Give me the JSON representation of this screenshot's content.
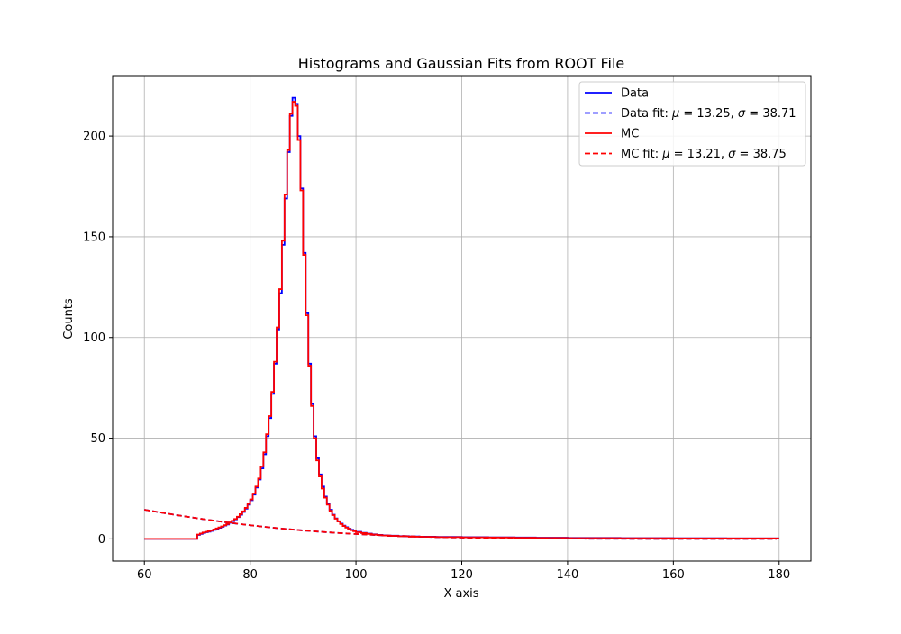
{
  "chart_data": {
    "type": "line",
    "title": "Histograms and Gaussian Fits from ROOT File",
    "xlabel": "X axis",
    "ylabel": "Counts",
    "xlim": [
      54,
      186
    ],
    "ylim": [
      -11,
      230
    ],
    "grid": true,
    "legend_position": "top-right",
    "x_ticks": [
      60,
      80,
      100,
      120,
      140,
      160,
      180
    ],
    "y_ticks": [
      0,
      50,
      100,
      150,
      200
    ],
    "x_tick_labels": [
      "60",
      "80",
      "100",
      "120",
      "140",
      "160",
      "180"
    ],
    "y_tick_labels": [
      "0",
      "50",
      "100",
      "150",
      "200"
    ],
    "bin_width": 0.5,
    "series": [
      {
        "name": "Data",
        "style": "step",
        "color": "#0000ff",
        "x": [
          60,
          60.5,
          61,
          61.5,
          62,
          62.5,
          63,
          63.5,
          64,
          64.5,
          65,
          65.5,
          66,
          66.5,
          67,
          67.5,
          68,
          68.5,
          69,
          69.5,
          70,
          70.5,
          71,
          71.5,
          72,
          72.5,
          73,
          73.5,
          74,
          74.5,
          75,
          75.5,
          76,
          76.5,
          77,
          77.5,
          78,
          78.5,
          79,
          79.5,
          80,
          80.5,
          81,
          81.5,
          82,
          82.5,
          83,
          83.5,
          84,
          84.5,
          85,
          85.5,
          86,
          86.5,
          87,
          87.5,
          88,
          88.5,
          89,
          89.5,
          90,
          90.5,
          91,
          91.5,
          92,
          92.5,
          93,
          93.5,
          94,
          94.5,
          95,
          95.5,
          96,
          96.5,
          97,
          97.5,
          98,
          98.5,
          99,
          99.5,
          100,
          101,
          102,
          103,
          104,
          105,
          106,
          108,
          110,
          112,
          115,
          120,
          125,
          130,
          134,
          140,
          150,
          160,
          170,
          179.5
        ],
        "y": [
          0,
          0,
          0,
          0,
          0,
          0,
          0,
          0,
          0,
          0,
          0,
          0,
          0,
          0,
          0,
          0,
          0,
          0,
          0,
          0,
          2,
          2.5,
          3,
          3.3,
          3.6,
          4,
          4.5,
          5,
          5.5,
          6,
          6.6,
          7.2,
          8,
          8.8,
          9.7,
          10.8,
          12,
          13.4,
          15,
          17,
          19.2,
          22,
          25.5,
          29.5,
          35,
          42,
          51,
          60,
          72,
          87,
          104,
          122,
          146,
          169,
          192,
          210,
          219,
          216,
          200,
          174,
          142,
          112,
          87,
          67,
          51,
          40,
          32,
          26,
          21,
          17.5,
          14.5,
          12,
          10.2,
          8.8,
          7.6,
          6.6,
          5.8,
          5.1,
          4.5,
          4,
          3.5,
          3,
          2.6,
          2.3,
          2,
          1.8,
          1.6,
          1.4,
          1.2,
          1.1,
          1,
          0.9,
          0.8,
          0.7,
          0.6,
          0.5,
          0.4,
          0.35,
          0.3,
          0.3
        ],
        "fit": {
          "name": "Data fit: μ = 13.25, σ = 38.71",
          "label_plain": "Data fit: ",
          "mu_value": "13.25",
          "sigma_value": "38.71",
          "mu": 13.25,
          "sigma": 38.71,
          "amplitude": 30,
          "color": "#0000ff"
        }
      },
      {
        "name": "MC",
        "style": "step",
        "color": "#ff0000",
        "x": [
          60,
          60.5,
          61,
          61.5,
          62,
          62.5,
          63,
          63.5,
          64,
          64.5,
          65,
          65.5,
          66,
          66.5,
          67,
          67.5,
          68,
          68.5,
          69,
          69.5,
          70,
          70.5,
          71,
          71.5,
          72,
          72.5,
          73,
          73.5,
          74,
          74.5,
          75,
          75.5,
          76,
          76.5,
          77,
          77.5,
          78,
          78.5,
          79,
          79.5,
          80,
          80.5,
          81,
          81.5,
          82,
          82.5,
          83,
          83.5,
          84,
          84.5,
          85,
          85.5,
          86,
          86.5,
          87,
          87.5,
          88,
          88.5,
          89,
          89.5,
          90,
          90.5,
          91,
          91.5,
          92,
          92.5,
          93,
          93.5,
          94,
          94.5,
          95,
          95.5,
          96,
          96.5,
          97,
          97.5,
          98,
          98.5,
          99,
          99.5,
          100,
          101,
          102,
          103,
          104,
          105,
          106,
          108,
          110,
          112,
          115,
          120,
          125,
          130,
          134,
          140,
          150,
          160,
          170,
          179.5
        ],
        "y": [
          0,
          0,
          0,
          0,
          0,
          0,
          0,
          0,
          0,
          0,
          0,
          0,
          0,
          0,
          0,
          0,
          0,
          0,
          0,
          0,
          2.2,
          2.7,
          3.2,
          3.5,
          3.8,
          4.2,
          4.7,
          5.2,
          5.7,
          6.2,
          6.8,
          7.4,
          8.2,
          9,
          9.9,
          11,
          12.3,
          13.7,
          15.4,
          17.4,
          19.6,
          22.5,
          26,
          30,
          36,
          43,
          52,
          61,
          73,
          88,
          105,
          124,
          148,
          171,
          193,
          211,
          217,
          215,
          198,
          173,
          141,
          111,
          86,
          66,
          50,
          39,
          31,
          25,
          20.5,
          17,
          14,
          11.8,
          10,
          8.6,
          7.4,
          6.4,
          5.6,
          4.9,
          4.3,
          3.8,
          3.3,
          2.9,
          2.5,
          2.2,
          1.9,
          1.7,
          1.5,
          1.3,
          1.1,
          1,
          0.9,
          0.8,
          0.7,
          0.6,
          0.5,
          0.4,
          0.35,
          0.3,
          0.3,
          0.3
        ],
        "fit": {
          "name": "MC fit: μ = 13.21, σ = 38.75",
          "label_plain": "MC fit: ",
          "mu_value": "13.21",
          "sigma_value": "38.75",
          "mu": 13.21,
          "sigma": 38.75,
          "amplitude": 30,
          "color": "#ff0000"
        }
      }
    ]
  }
}
